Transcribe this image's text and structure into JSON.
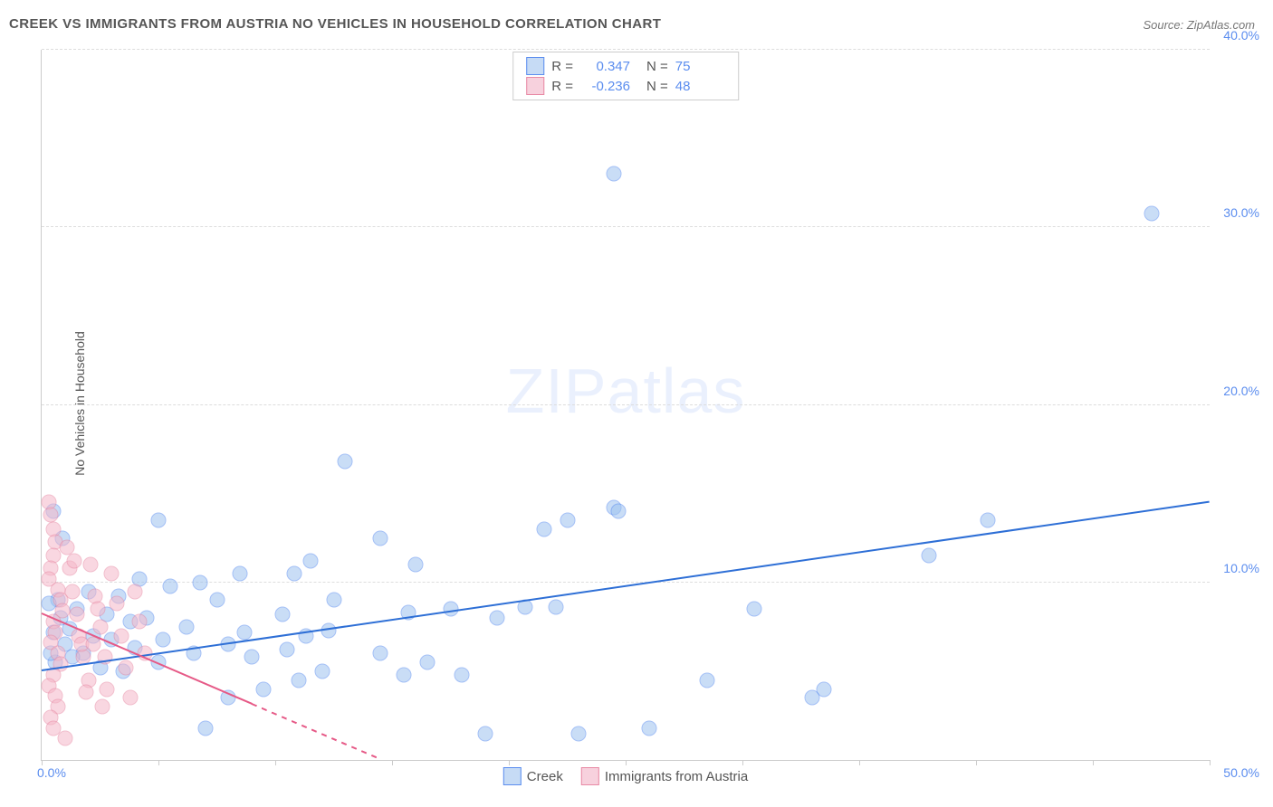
{
  "title": "CREEK VS IMMIGRANTS FROM AUSTRIA NO VEHICLES IN HOUSEHOLD CORRELATION CHART",
  "source": "Source: ZipAtlas.com",
  "y_axis_label": "No Vehicles in Household",
  "watermark_bold": "ZIP",
  "watermark_thin": "atlas",
  "chart": {
    "type": "scatter",
    "xlim": [
      0,
      50
    ],
    "ylim": [
      0,
      40
    ],
    "x_ticks": [
      0,
      5,
      10,
      15,
      20,
      25,
      30,
      35,
      40,
      45,
      50
    ],
    "x_tick_labels": {
      "0": "0.0%",
      "50": "50.0%"
    },
    "y_ticks": [
      10,
      20,
      30,
      40
    ],
    "y_tick_labels": {
      "10": "10.0%",
      "20": "20.0%",
      "30": "30.0%",
      "40": "40.0%"
    },
    "background_color": "#ffffff",
    "grid_color": "#dddddd",
    "axis_color": "#cccccc",
    "tick_label_color": "#5b8def",
    "series": [
      {
        "name": "Creek",
        "color_fill": "#9dc3f0",
        "color_stroke": "#5b8def",
        "fill_opacity": 0.55,
        "marker_radius": 7.5,
        "R": "0.347",
        "N": "75",
        "trend": {
          "x1": 0,
          "y1": 5.0,
          "x2": 50,
          "y2": 14.5,
          "color": "#2e6fd6",
          "width": 2
        },
        "points": [
          [
            24.5,
            33.0
          ],
          [
            47.5,
            30.8
          ],
          [
            40.5,
            13.5
          ],
          [
            38.0,
            11.5
          ],
          [
            30.5,
            8.5
          ],
          [
            22.5,
            13.5
          ],
          [
            21.5,
            13.0
          ],
          [
            24.5,
            14.2
          ],
          [
            24.7,
            14.0
          ],
          [
            28.5,
            4.5
          ],
          [
            26.0,
            1.8
          ],
          [
            23.0,
            1.5
          ],
          [
            22.0,
            8.6
          ],
          [
            20.7,
            8.6
          ],
          [
            19.0,
            1.5
          ],
          [
            18.0,
            4.8
          ],
          [
            17.5,
            8.5
          ],
          [
            16.0,
            11.0
          ],
          [
            15.7,
            8.3
          ],
          [
            15.5,
            4.8
          ],
          [
            14.5,
            12.5
          ],
          [
            14.5,
            6.0
          ],
          [
            13.0,
            16.8
          ],
          [
            12.5,
            9.0
          ],
          [
            12.3,
            7.3
          ],
          [
            11.5,
            11.2
          ],
          [
            11.3,
            7.0
          ],
          [
            10.8,
            10.5
          ],
          [
            10.5,
            6.2
          ],
          [
            10.3,
            8.2
          ],
          [
            9.5,
            4.0
          ],
          [
            9.0,
            5.8
          ],
          [
            8.7,
            7.2
          ],
          [
            8.5,
            10.5
          ],
          [
            8.0,
            6.5
          ],
          [
            7.5,
            9.0
          ],
          [
            7.0,
            1.8
          ],
          [
            6.8,
            10.0
          ],
          [
            6.5,
            6.0
          ],
          [
            6.2,
            7.5
          ],
          [
            5.5,
            9.8
          ],
          [
            5.2,
            6.8
          ],
          [
            5.0,
            5.5
          ],
          [
            5.0,
            13.5
          ],
          [
            4.5,
            8.0
          ],
          [
            4.2,
            10.2
          ],
          [
            4.0,
            6.3
          ],
          [
            3.8,
            7.8
          ],
          [
            3.5,
            5.0
          ],
          [
            3.3,
            9.2
          ],
          [
            3.0,
            6.8
          ],
          [
            2.8,
            8.2
          ],
          [
            2.5,
            5.2
          ],
          [
            2.2,
            7.0
          ],
          [
            2.0,
            9.5
          ],
          [
            1.8,
            6.0
          ],
          [
            1.5,
            8.5
          ],
          [
            1.3,
            5.8
          ],
          [
            1.2,
            7.4
          ],
          [
            1.0,
            6.5
          ],
          [
            0.9,
            12.5
          ],
          [
            0.8,
            8.0
          ],
          [
            0.7,
            9.0
          ],
          [
            0.6,
            5.5
          ],
          [
            0.5,
            7.2
          ],
          [
            0.4,
            6.0
          ],
          [
            0.3,
            8.8
          ],
          [
            0.5,
            14.0
          ],
          [
            33.5,
            4.0
          ],
          [
            33.0,
            3.5
          ],
          [
            19.5,
            8.0
          ],
          [
            16.5,
            5.5
          ],
          [
            11.0,
            4.5
          ],
          [
            12.0,
            5.0
          ],
          [
            8.0,
            3.5
          ]
        ]
      },
      {
        "name": "Immigrants from Austria",
        "color_fill": "#f5b8c9",
        "color_stroke": "#e88aa5",
        "fill_opacity": 0.55,
        "marker_radius": 7.5,
        "R": "-0.236",
        "N": "48",
        "trend": {
          "x1": 0,
          "y1": 8.2,
          "x2": 14.5,
          "y2": 0,
          "color": "#e65a87",
          "width": 2,
          "dash_after_x": 9.0
        },
        "points": [
          [
            0.3,
            14.5
          ],
          [
            0.4,
            13.8
          ],
          [
            0.5,
            13.0
          ],
          [
            0.6,
            12.3
          ],
          [
            0.5,
            11.5
          ],
          [
            0.4,
            10.8
          ],
          [
            0.3,
            10.2
          ],
          [
            0.7,
            9.6
          ],
          [
            0.8,
            9.0
          ],
          [
            0.9,
            8.4
          ],
          [
            0.5,
            7.8
          ],
          [
            0.6,
            7.2
          ],
          [
            0.4,
            6.6
          ],
          [
            0.7,
            6.0
          ],
          [
            0.8,
            5.4
          ],
          [
            0.5,
            4.8
          ],
          [
            0.3,
            4.2
          ],
          [
            0.6,
            3.6
          ],
          [
            0.7,
            3.0
          ],
          [
            0.4,
            2.4
          ],
          [
            0.5,
            1.8
          ],
          [
            1.0,
            1.2
          ],
          [
            1.2,
            10.8
          ],
          [
            1.3,
            9.5
          ],
          [
            1.5,
            8.2
          ],
          [
            1.6,
            7.0
          ],
          [
            1.8,
            5.8
          ],
          [
            2.0,
            4.5
          ],
          [
            2.1,
            11.0
          ],
          [
            2.3,
            9.2
          ],
          [
            2.5,
            7.5
          ],
          [
            2.7,
            5.8
          ],
          [
            2.8,
            4.0
          ],
          [
            3.0,
            10.5
          ],
          [
            3.2,
            8.8
          ],
          [
            3.4,
            7.0
          ],
          [
            3.6,
            5.2
          ],
          [
            3.8,
            3.5
          ],
          [
            4.0,
            9.5
          ],
          [
            4.2,
            7.8
          ],
          [
            4.4,
            6.0
          ],
          [
            1.1,
            12.0
          ],
          [
            1.4,
            11.2
          ],
          [
            1.7,
            6.5
          ],
          [
            1.9,
            3.8
          ],
          [
            2.2,
            6.5
          ],
          [
            2.4,
            8.5
          ],
          [
            2.6,
            3.0
          ]
        ]
      }
    ]
  },
  "legend_top": {
    "rows": [
      {
        "swatch_fill": "#c6dbf5",
        "swatch_stroke": "#5b8def",
        "R_label": "R =",
        "R_val": "0.347",
        "N_label": "N =",
        "N_val": "75"
      },
      {
        "swatch_fill": "#f7d1dd",
        "swatch_stroke": "#e88aa5",
        "R_label": "R =",
        "R_val": "-0.236",
        "N_label": "N =",
        "N_val": "48"
      }
    ]
  },
  "legend_bottom": {
    "items": [
      {
        "swatch_fill": "#c6dbf5",
        "swatch_stroke": "#5b8def",
        "label": "Creek"
      },
      {
        "swatch_fill": "#f7d1dd",
        "swatch_stroke": "#e88aa5",
        "label": "Immigrants from Austria"
      }
    ]
  }
}
